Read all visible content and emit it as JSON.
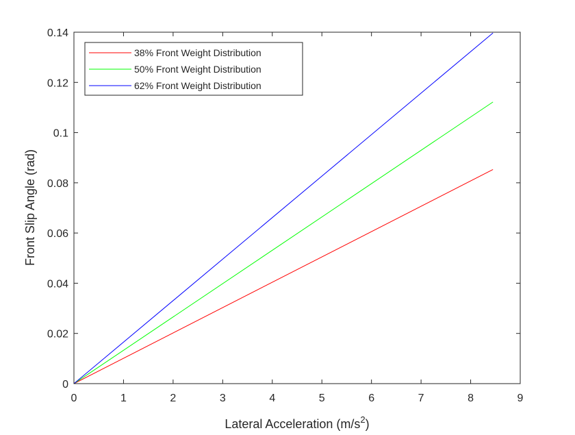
{
  "chart_data": {
    "type": "line",
    "title": "",
    "xlabel": "Lateral Acceleration (m/s",
    "xlabel_sup": "2",
    "xlabel_suffix": ")",
    "ylabel": "Front Slip Angle (rad)",
    "xlim": [
      0,
      9
    ],
    "ylim": [
      0,
      0.14
    ],
    "xticks": [
      0,
      1,
      2,
      3,
      4,
      5,
      6,
      7,
      8,
      9
    ],
    "xtick_labels": [
      "0",
      "1",
      "2",
      "3",
      "4",
      "5",
      "6",
      "7",
      "8",
      "9"
    ],
    "yticks": [
      0,
      0.02,
      0.04,
      0.06,
      0.08,
      0.1,
      0.12,
      0.14
    ],
    "ytick_labels": [
      "0",
      "0.02",
      "0.04",
      "0.06",
      "0.08",
      "0.1",
      "0.12",
      "0.14"
    ],
    "grid": false,
    "legend_position": "top-left",
    "series": [
      {
        "name": "38% Front Weight Distribution",
        "color": "#ff0000",
        "x": [
          0,
          8.45
        ],
        "y": [
          0,
          0.0853
        ]
      },
      {
        "name": "50% Front Weight Distribution",
        "color": "#00ff00",
        "x": [
          0,
          8.45
        ],
        "y": [
          0,
          0.1122
        ]
      },
      {
        "name": "62% Front Weight Distribution",
        "color": "#0000ff",
        "x": [
          0,
          8.45
        ],
        "y": [
          0,
          0.1397
        ]
      }
    ]
  }
}
